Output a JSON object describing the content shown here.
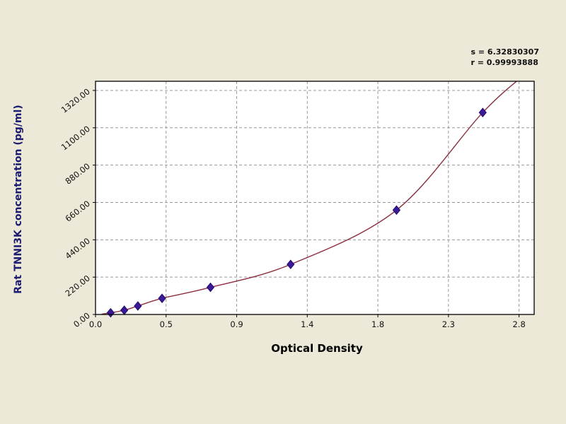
{
  "stats": {
    "line1": "s = 6.32830307",
    "line2": "r = 0.99993888"
  },
  "chart_data": {
    "type": "scatter",
    "title": "",
    "xlabel": "Optical Density",
    "ylabel": "Rat TNNI3K concentration (pg/ml)",
    "x_tick_labels": [
      "0.0",
      "0.5",
      "0.9",
      "1.4",
      "1.8",
      "2.3",
      "2.8"
    ],
    "x_tick_values": [
      0,
      0.4667,
      0.9333,
      1.4,
      1.8667,
      2.3333,
      2.8
    ],
    "y_tick_labels": [
      "0.00",
      "220.00",
      "440.00",
      "660.00",
      "880.00",
      "1100.00",
      "1320.00"
    ],
    "y_tick_values": [
      0,
      220,
      440,
      660,
      880,
      1100,
      1320
    ],
    "xlim": [
      0,
      2.9
    ],
    "ylim": [
      0,
      1374
    ],
    "grid": "dashed",
    "legend": "none",
    "series": [
      {
        "name": "standard-points",
        "points": [
          [
            0.1,
            10
          ],
          [
            0.19,
            25
          ],
          [
            0.28,
            50
          ],
          [
            0.44,
            95
          ],
          [
            0.76,
            160
          ],
          [
            1.29,
            295
          ],
          [
            1.99,
            615
          ],
          [
            2.56,
            1190
          ]
        ]
      }
    ],
    "curve_start_anchor": [
      0.04,
      2
    ],
    "curve_end_anchor": [
      2.86,
      1430
    ],
    "colors": {
      "background": "#ece9d8",
      "plot_background": "#ffffff",
      "axis": "#000000",
      "grid": "#999999",
      "curve": "#8b2f3f",
      "point_fill": "#3a1896",
      "point_stroke": "#260d6e"
    }
  }
}
